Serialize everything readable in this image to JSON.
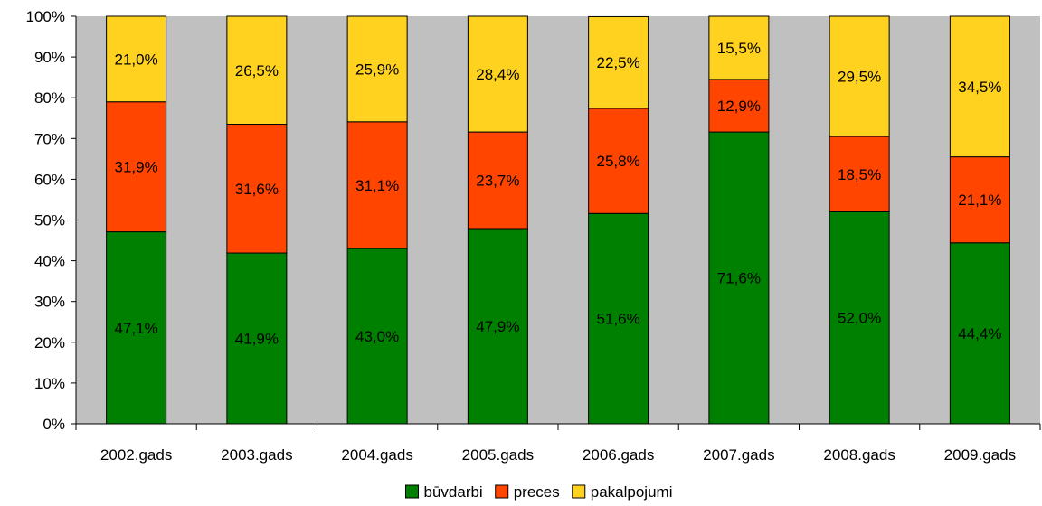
{
  "chart_data": {
    "type": "bar",
    "stacked": true,
    "percent_stacked": true,
    "title": "",
    "xlabel": "",
    "ylabel": "",
    "categories": [
      "2002.gads",
      "2003.gads",
      "2004.gads",
      "2005.gads",
      "2006.gads",
      "2007.gads",
      "2008.gads",
      "2009.gads"
    ],
    "ylim": [
      0,
      100
    ],
    "yticks": [
      0,
      10,
      20,
      30,
      40,
      50,
      60,
      70,
      80,
      90,
      100
    ],
    "ytick_labels": [
      "0%",
      "10%",
      "20%",
      "30%",
      "40%",
      "50%",
      "60%",
      "70%",
      "80%",
      "90%",
      "100%"
    ],
    "plot_background": "#c0c0c0",
    "grid": false,
    "legend_position": "bottom",
    "series": [
      {
        "name": "būvdarbi",
        "color": "#008000",
        "values": [
          47.1,
          41.9,
          43.0,
          47.9,
          51.6,
          71.6,
          52.0,
          44.4
        ],
        "labels": [
          "47,1%",
          "41,9%",
          "43,0%",
          "47,9%",
          "51,6%",
          "71,6%",
          "52,0%",
          "44,4%"
        ]
      },
      {
        "name": "preces",
        "color": "#ff4500",
        "values": [
          31.9,
          31.6,
          31.1,
          23.7,
          25.8,
          12.9,
          18.5,
          21.1
        ],
        "labels": [
          "31,9%",
          "31,6%",
          "31,1%",
          "23,7%",
          "25,8%",
          "12,9%",
          "18,5%",
          "21,1%"
        ]
      },
      {
        "name": "pakalpojumi",
        "color": "#ffd21f",
        "values": [
          21.0,
          26.5,
          25.9,
          28.4,
          22.5,
          15.5,
          29.5,
          34.5
        ],
        "labels": [
          "21,0%",
          "26,5%",
          "25,9%",
          "28,4%",
          "22,5%",
          "15,5%",
          "29,5%",
          "34,5%"
        ]
      }
    ]
  }
}
